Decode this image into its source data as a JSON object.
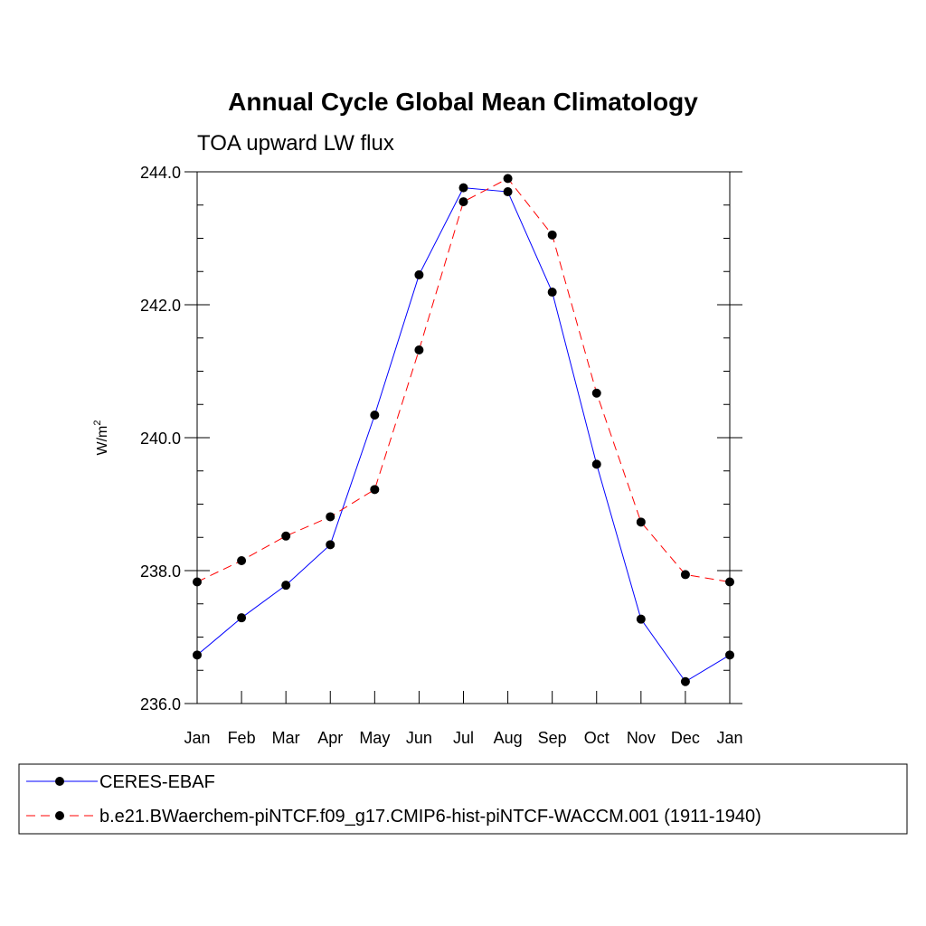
{
  "chart_data": {
    "type": "line",
    "title": "Annual Cycle Global Mean Climatology",
    "subtitle": "TOA upward LW flux",
    "ylabel": "W/m",
    "ylabel_superscript": "2",
    "xlabel": "",
    "ylim": [
      236.0,
      244.0
    ],
    "yticks": [
      236.0,
      238.0,
      240.0,
      242.0,
      244.0
    ],
    "ytick_labels": [
      "236.0",
      "238.0",
      "240.0",
      "242.0",
      "244.0"
    ],
    "categories": [
      "Jan",
      "Feb",
      "Mar",
      "Apr",
      "May",
      "Jun",
      "Jul",
      "Aug",
      "Sep",
      "Oct",
      "Nov",
      "Dec",
      "Jan"
    ],
    "series": [
      {
        "name": "CERES-EBAF",
        "color": "#0000ff",
        "dash": "solid",
        "values": [
          236.73,
          237.29,
          237.78,
          238.39,
          240.34,
          242.45,
          243.76,
          243.7,
          242.19,
          239.6,
          237.27,
          236.33,
          236.73
        ]
      },
      {
        "name": "b.e21.BWaerchem-piNTCF.f09_g17.CMIP6-hist-piNTCF-WACCM.001 (1911-1940)",
        "color": "#ff0000",
        "dash": "dashed",
        "values": [
          237.83,
          238.15,
          238.52,
          238.81,
          239.22,
          241.32,
          243.55,
          243.9,
          243.05,
          240.67,
          238.73,
          237.94,
          237.83
        ]
      }
    ],
    "marker_color": "#000000",
    "legend_position": "bottom"
  }
}
